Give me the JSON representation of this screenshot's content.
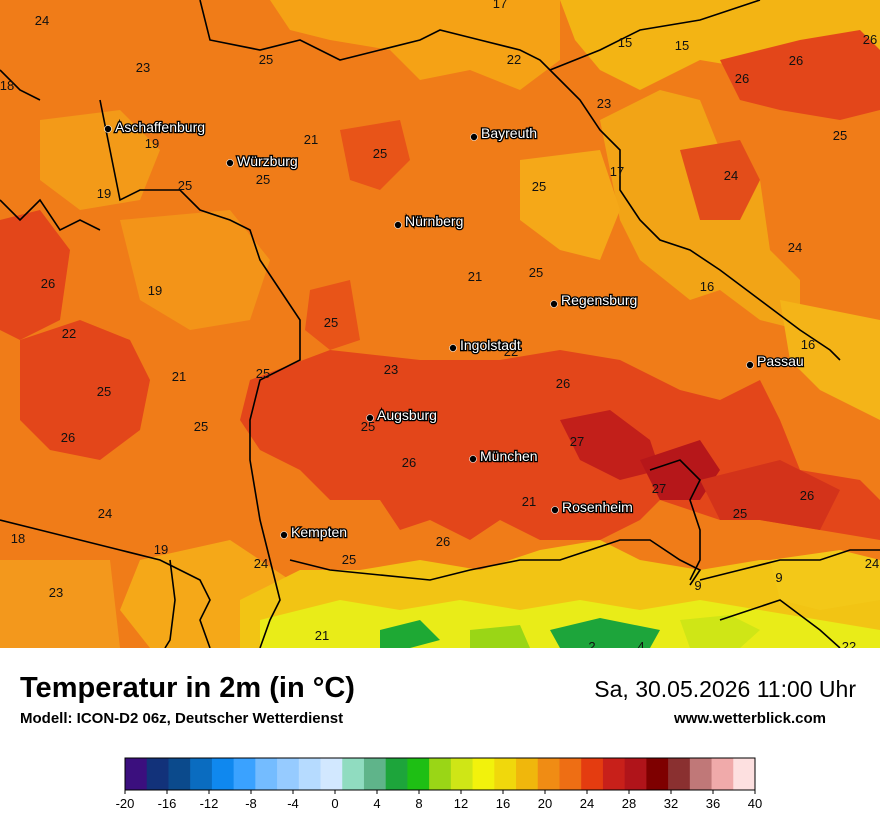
{
  "header": {
    "title": "Temperatur in 2m (in °C)",
    "model": "Modell: ICON-D2 06z, Deutscher Wetterdienst",
    "datetime": "Sa, 30.05.2026 11:00 Uhr",
    "website": "www.wetterblick.com"
  },
  "cities": [
    {
      "name": "Aschaffenburg"
    },
    {
      "name": "Würzburg"
    },
    {
      "name": "Bayreuth"
    },
    {
      "name": "Nürnberg"
    },
    {
      "name": "Regensburg"
    },
    {
      "name": "Ingolstadt"
    },
    {
      "name": "Passau"
    },
    {
      "name": "Augsburg"
    },
    {
      "name": "München"
    },
    {
      "name": "Rosenheim"
    },
    {
      "name": "Kempten"
    }
  ],
  "map_values": [
    "24",
    "23",
    "25",
    "17",
    "22",
    "15",
    "15",
    "26",
    "26",
    "26",
    "18",
    "19",
    "21",
    "25",
    "23",
    "25",
    "19",
    "25",
    "25",
    "17",
    "25",
    "24",
    "26",
    "19",
    "21",
    "25",
    "16",
    "22",
    "25",
    "23",
    "26",
    "16",
    "25",
    "25",
    "21",
    "25",
    "27",
    "26",
    "27",
    "24",
    "26",
    "24",
    "26",
    "19",
    "24",
    "25",
    "26",
    "23",
    "21",
    "9",
    "9",
    "24",
    "2",
    "4",
    "22",
    "18",
    "25",
    "22",
    "21",
    "25"
  ],
  "legend": {
    "ticks": [
      "-20",
      "-16",
      "-12",
      "-8",
      "-4",
      "0",
      "4",
      "8",
      "12",
      "16",
      "20",
      "24",
      "28",
      "32",
      "36",
      "40"
    ],
    "colors": [
      "#3b0f7e",
      "#12327a",
      "#0b4a8c",
      "#0a6cc0",
      "#0f88ef",
      "#3aa2ff",
      "#74bcff",
      "#96cbff",
      "#b6dbff",
      "#d2e8ff",
      "#90dcc0",
      "#5fb48a",
      "#1da53b",
      "#1ebf14",
      "#9ad616",
      "#cfe616",
      "#f2f20c",
      "#f0d80c",
      "#f0b70c",
      "#f08c14",
      "#ee6e14",
      "#e43c10",
      "#c8201a",
      "#b0141a",
      "#7e0000",
      "#8a3030",
      "#c07878",
      "#f0aaaa",
      "#fde0e0"
    ]
  },
  "accent_colors": {
    "warm": "#f28a1c",
    "hot": "#e34516",
    "veryhot": "#bf1d1a",
    "mild": "#f2c01a",
    "cool": "#eef01b"
  }
}
